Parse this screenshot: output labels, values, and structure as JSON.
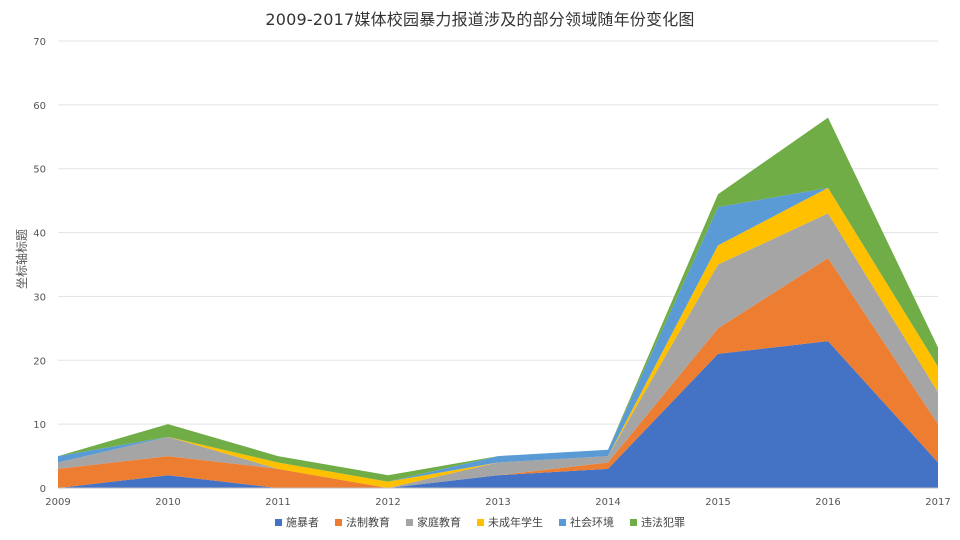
{
  "chart_data": {
    "type": "area",
    "stacked": true,
    "title": "2009-2017媒体校园暴力报道涉及的部分领域随年份变化图",
    "xlabel": "",
    "ylabel": "坐标轴标题",
    "x": [
      "2009",
      "2010",
      "2011",
      "2012",
      "2013",
      "2014",
      "2015",
      "2016",
      "2017"
    ],
    "ylim": [
      0,
      70
    ],
    "yticks": [
      0,
      10,
      20,
      30,
      40,
      50,
      60,
      70
    ],
    "grid": true,
    "legend_position": "bottom",
    "series": [
      {
        "name": "施暴者",
        "color": "#4472C4",
        "values": [
          0,
          2,
          0,
          0,
          2,
          3,
          21,
          23,
          4
        ]
      },
      {
        "name": "法制教育",
        "color": "#ED7D31",
        "values": [
          3,
          3,
          3,
          0,
          0,
          1,
          4,
          13,
          6
        ]
      },
      {
        "name": "家庭教育",
        "color": "#A5A5A5",
        "values": [
          1,
          3,
          0,
          0,
          2,
          1,
          10,
          7,
          5
        ]
      },
      {
        "name": "未成年学生",
        "color": "#FFC000",
        "values": [
          0,
          0,
          1,
          1,
          0,
          0,
          3,
          4,
          4
        ]
      },
      {
        "name": "社会环境",
        "color": "#5B9BD5",
        "values": [
          1,
          0,
          0,
          0,
          1,
          1,
          6,
          0,
          0
        ]
      },
      {
        "name": "违法犯罪",
        "color": "#70AD47",
        "values": [
          0,
          2,
          1,
          1,
          0,
          0,
          2,
          11,
          3
        ]
      }
    ]
  }
}
